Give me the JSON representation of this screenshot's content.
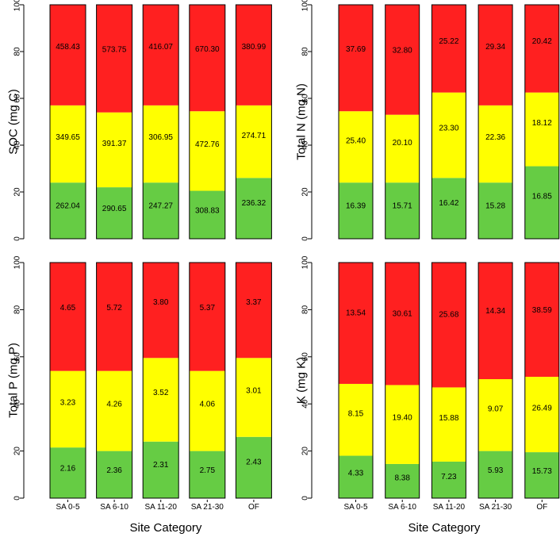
{
  "colors": {
    "bottom": "#66cc44",
    "middle": "#ffff00",
    "top": "#ff2020",
    "edge": "#000000"
  },
  "chart_data": [
    {
      "type": "bar",
      "stacked": true,
      "ylabel": "SOC (mg C)",
      "xlabel": "",
      "ylim": [
        0,
        100
      ],
      "yticks": [
        "0",
        "20",
        "40",
        "60",
        "80",
        "100"
      ],
      "categories": [
        "SA 0-5",
        "SA 6-10",
        "SA 11-20",
        "SA 21-30",
        "OF"
      ],
      "series": [
        {
          "name": "bottom",
          "values": [
            24,
            22,
            24,
            20.5,
            26
          ],
          "labels": [
            "262.04",
            "290.65",
            "247.27",
            "308.83",
            "236.32"
          ]
        },
        {
          "name": "middle",
          "values": [
            33,
            32,
            33,
            34,
            31
          ],
          "labels": [
            "349.65",
            "391.37",
            "306.95",
            "472.76",
            "274.71"
          ]
        },
        {
          "name": "top",
          "values": [
            43,
            46,
            43,
            45.5,
            43
          ],
          "labels": [
            "458.43",
            "573.75",
            "416.07",
            "670.30",
            "380.99"
          ]
        }
      ]
    },
    {
      "type": "bar",
      "stacked": true,
      "ylabel": "Total N (mg N)",
      "xlabel": "",
      "ylim": [
        0,
        100
      ],
      "yticks": [
        "0",
        "20",
        "40",
        "60",
        "80",
        "100"
      ],
      "categories": [
        "SA 0-5",
        "SA 6-10",
        "SA 11-20",
        "SA 21-30",
        "OF"
      ],
      "series": [
        {
          "name": "bottom",
          "values": [
            24,
            24,
            26,
            24,
            31
          ],
          "labels": [
            "16.39",
            "15.71",
            "16.42",
            "15.28",
            "16.85"
          ]
        },
        {
          "name": "middle",
          "values": [
            30.5,
            29,
            36.5,
            33,
            31.5
          ],
          "labels": [
            "25.40",
            "20.10",
            "23.30",
            "22.36",
            "18.12"
          ]
        },
        {
          "name": "top",
          "values": [
            45.5,
            47,
            37.5,
            43,
            37.5
          ],
          "labels": [
            "37.69",
            "32.80",
            "25.22",
            "29.34",
            "20.42"
          ]
        }
      ]
    },
    {
      "type": "bar",
      "stacked": true,
      "ylabel": "Total P (mg P)",
      "xlabel": "Site Category",
      "ylim": [
        0,
        100
      ],
      "yticks": [
        "0",
        "20",
        "40",
        "60",
        "80",
        "100"
      ],
      "categories": [
        "SA 0-5",
        "SA 6-10",
        "SA 11-20",
        "SA 21-30",
        "OF"
      ],
      "series": [
        {
          "name": "bottom",
          "values": [
            21.5,
            20,
            24,
            20,
            26
          ],
          "labels": [
            "2.16",
            "2.36",
            "2.31",
            "2.75",
            "2.43"
          ]
        },
        {
          "name": "middle",
          "values": [
            32.5,
            34,
            35.5,
            34,
            33.5
          ],
          "labels": [
            "3.23",
            "4.26",
            "3.52",
            "4.06",
            "3.01"
          ]
        },
        {
          "name": "top",
          "values": [
            46,
            46,
            40.5,
            46,
            40.5
          ],
          "labels": [
            "4.65",
            "5.72",
            "3.80",
            "5.37",
            "3.37"
          ]
        }
      ]
    },
    {
      "type": "bar",
      "stacked": true,
      "ylabel": "K (mg K)",
      "xlabel": "Site Category",
      "ylim": [
        0,
        100
      ],
      "yticks": [
        "0",
        "20",
        "40",
        "60",
        "80",
        "100"
      ],
      "categories": [
        "SA 0-5",
        "SA 6-10",
        "SA 11-20",
        "SA 21-30",
        "OF"
      ],
      "series": [
        {
          "name": "bottom",
          "values": [
            18,
            14.5,
            15.5,
            20,
            19.5
          ],
          "labels": [
            "4.33",
            "8.38",
            "7.23",
            "5.93",
            "15.73"
          ]
        },
        {
          "name": "middle",
          "values": [
            30.5,
            33.5,
            31.5,
            30.5,
            32
          ],
          "labels": [
            "8.15",
            "19.40",
            "15.88",
            "9.07",
            "26.49"
          ]
        },
        {
          "name": "top",
          "values": [
            51.5,
            52,
            53,
            49.5,
            48.5
          ],
          "labels": [
            "13.54",
            "30.61",
            "25.68",
            "14.34",
            "38.59"
          ]
        }
      ]
    }
  ]
}
